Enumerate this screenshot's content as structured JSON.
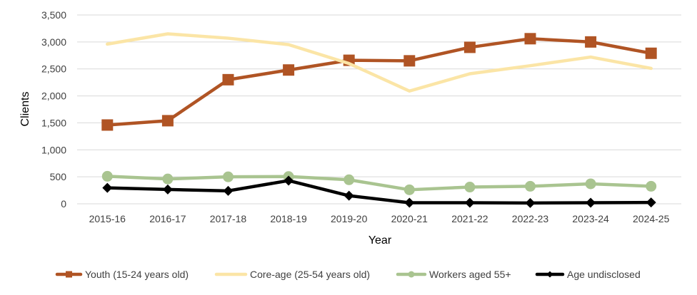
{
  "chart_data": {
    "type": "line",
    "title": "",
    "xlabel": "Year",
    "ylabel": "Clients",
    "ylim": [
      0,
      3500
    ],
    "y_ticks": [
      0,
      500,
      1000,
      1500,
      2000,
      2500,
      3000,
      3500
    ],
    "y_tick_labels": [
      "0",
      "500",
      "1,000",
      "1,500",
      "2,000",
      "2,500",
      "3,000",
      "3,500"
    ],
    "grid": "horizontal",
    "legend_position": "bottom",
    "categories": [
      "2015-16",
      "2016-17",
      "2017-18",
      "2018-19",
      "2019-20",
      "2020-21",
      "2021-22",
      "2022-23",
      "2023-24",
      "2024-25"
    ],
    "series": [
      {
        "name": "Youth (15-24 years old)",
        "color": "#b05424",
        "marker": "square",
        "values": [
          1460,
          1540,
          2300,
          2480,
          2660,
          2650,
          2900,
          3060,
          3000,
          2790
        ]
      },
      {
        "name": "Core-age (25-54 years old)",
        "color": "#fbe5a6",
        "marker": "none",
        "values": [
          2960,
          3150,
          3070,
          2950,
          2600,
          2090,
          2410,
          2560,
          2720,
          2510
        ]
      },
      {
        "name": "Workers aged 55+",
        "color": "#a9c490",
        "marker": "circle",
        "values": [
          510,
          460,
          500,
          505,
          445,
          260,
          310,
          325,
          370,
          325
        ]
      },
      {
        "name": "Age undisclosed",
        "color": "#000000",
        "marker": "diamond",
        "values": [
          295,
          265,
          240,
          430,
          150,
          20,
          20,
          15,
          20,
          25
        ]
      }
    ]
  }
}
